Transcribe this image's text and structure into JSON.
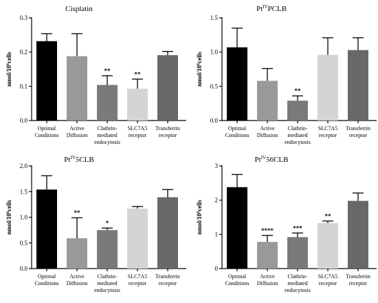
{
  "chart_data": [
    {
      "type": "bar",
      "title": "Cisplatin",
      "title_sup": "",
      "title_rest": "",
      "ylabel": "nmol/10",
      "ylabel_sup": "6",
      "ylabel_rest": "cells",
      "ylim": [
        0,
        0.3
      ],
      "yticks": [
        0.0,
        0.1,
        0.2,
        0.3
      ],
      "ytick_labels": [
        "0.0",
        "0.1",
        "0.2",
        "0.3"
      ],
      "categories": [
        [
          "Optimal",
          "Conditions"
        ],
        [
          "Active",
          "Diffusion"
        ],
        [
          "Clathrin-",
          "mediated",
          "endocytosis"
        ],
        [
          "SLC7A5",
          "receptor"
        ],
        [
          "Transferrin",
          "receptor"
        ]
      ],
      "values": [
        0.232,
        0.188,
        0.104,
        0.093,
        0.191
      ],
      "errors": [
        0.022,
        0.066,
        0.027,
        0.028,
        0.011
      ],
      "significance": [
        "",
        "",
        "**",
        "**",
        ""
      ],
      "colors": [
        "#000000",
        "#999999",
        "#7a7a7a",
        "#d4d4d4",
        "#686868"
      ]
    },
    {
      "type": "bar",
      "title": "Pt",
      "title_sup": "IV",
      "title_rest": "PCLB",
      "ylabel": "nmol/10",
      "ylabel_sup": "6",
      "ylabel_rest": "cells",
      "ylim": [
        0,
        1.5
      ],
      "yticks": [
        0.0,
        0.5,
        1.0,
        1.5
      ],
      "ytick_labels": [
        "0.0",
        "0.5",
        "1.0",
        "1.5"
      ],
      "categories": [
        [
          "Optimal",
          "Conditions"
        ],
        [
          "Active",
          "Diffusion"
        ],
        [
          "Clathrin-",
          "mediated",
          "endocytosis"
        ],
        [
          "SLC7A5",
          "receptor"
        ],
        [
          "Transferrin",
          "receptor"
        ]
      ],
      "values": [
        1.07,
        0.58,
        0.29,
        0.96,
        1.03
      ],
      "errors": [
        0.28,
        0.18,
        0.07,
        0.25,
        0.18
      ],
      "significance": [
        "",
        "",
        "**",
        "",
        ""
      ],
      "colors": [
        "#000000",
        "#999999",
        "#7a7a7a",
        "#d4d4d4",
        "#686868"
      ]
    },
    {
      "type": "bar",
      "title": "Pt",
      "title_sup": "IV",
      "title_rest": "5CLB",
      "ylabel": "nmol/10",
      "ylabel_sup": "6",
      "ylabel_rest": "cells",
      "ylim": [
        0,
        2.0
      ],
      "yticks": [
        0.0,
        0.5,
        1.0,
        1.5,
        2.0
      ],
      "ytick_labels": [
        "0.0",
        "0.5",
        "1.0",
        "1.5",
        "2.0"
      ],
      "categories": [
        [
          "Optimal",
          "Conditions"
        ],
        [
          "Active",
          "Diffusion"
        ],
        [
          "Clathrin-",
          "mediated",
          "endocytosis"
        ],
        [
          "SLC7A5",
          "receptor"
        ],
        [
          "Transferrin",
          "receptor"
        ]
      ],
      "values": [
        1.54,
        0.59,
        0.75,
        1.17,
        1.39
      ],
      "errors": [
        0.27,
        0.4,
        0.04,
        0.04,
        0.15
      ],
      "significance": [
        "",
        "**",
        "*",
        "",
        ""
      ],
      "colors": [
        "#000000",
        "#999999",
        "#7a7a7a",
        "#d4d4d4",
        "#686868"
      ]
    },
    {
      "type": "bar",
      "title": "Pt",
      "title_sup": "IV",
      "title_rest": "56CLB",
      "ylabel": "nmol/10",
      "ylabel_sup": "6",
      "ylabel_rest": "cells",
      "ylim": [
        0,
        3
      ],
      "yticks": [
        0,
        1,
        2,
        3
      ],
      "ytick_labels": [
        "0",
        "1",
        "2",
        "3"
      ],
      "categories": [
        [
          "Optimal",
          "Conditions"
        ],
        [
          "Active",
          "Diffusion"
        ],
        [
          "Clathrin-",
          "mediated",
          "endocytosis"
        ],
        [
          "SLC7A5",
          "receptor"
        ],
        [
          "Transferrin",
          "receptor"
        ]
      ],
      "values": [
        2.38,
        0.78,
        0.92,
        1.33,
        1.98
      ],
      "errors": [
        0.37,
        0.19,
        0.12,
        0.06,
        0.23
      ],
      "significance": [
        "",
        "****",
        "***",
        "**",
        ""
      ],
      "colors": [
        "#000000",
        "#999999",
        "#7a7a7a",
        "#d4d4d4",
        "#686868"
      ]
    }
  ]
}
